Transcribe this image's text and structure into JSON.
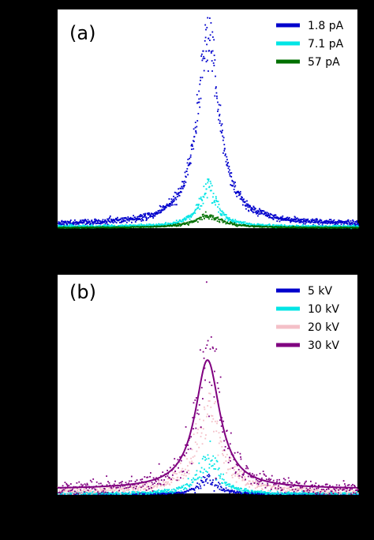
{
  "chart_data": [
    {
      "type": "scatter",
      "panel_label": "(a)",
      "xlabel": "",
      "ylabel": "",
      "title": "",
      "x_range": [
        -1,
        1
      ],
      "y_range": [
        0,
        1
      ],
      "grid": false,
      "legend_position": "top-right",
      "series": [
        {
          "name": "1.8 pA",
          "color": "#0000cc",
          "peak": 0.84,
          "width": 0.09,
          "baseline": 0.02,
          "noise": 0.05,
          "points": 900,
          "fit": false
        },
        {
          "name": "7.1 pA",
          "color": "#00e5e5",
          "peak": 0.18,
          "width": 0.07,
          "baseline": 0.01,
          "noise": 0.02,
          "points": 700,
          "fit": false
        },
        {
          "name": "57 pA",
          "color": "#007000",
          "peak": 0.05,
          "width": 0.12,
          "baseline": 0.005,
          "noise": 0.006,
          "points": 600,
          "fit": false
        }
      ]
    },
    {
      "type": "scatter",
      "panel_label": "(b)",
      "xlabel": "",
      "ylabel": "",
      "title": "",
      "x_range": [
        -1,
        1
      ],
      "y_range": [
        0,
        1
      ],
      "grid": false,
      "legend_position": "top-right",
      "series": [
        {
          "name": "5 kV",
          "color": "#0000cc",
          "peak": 0.07,
          "width": 0.07,
          "baseline": 0.0,
          "noise": 0.015,
          "points": 500,
          "fit": false
        },
        {
          "name": "10 kV",
          "color": "#00e5e5",
          "peak": 0.17,
          "width": 0.08,
          "baseline": 0.0,
          "noise": 0.03,
          "points": 500,
          "fit": false
        },
        {
          "name": "20 kV",
          "color": "#f4c0c8",
          "peak": 0.38,
          "width": 0.1,
          "baseline": 0.01,
          "noise": 0.06,
          "points": 500,
          "fit": false
        },
        {
          "name": "30 kV",
          "color": "#800080",
          "peak": 0.59,
          "width": 0.1,
          "baseline": 0.02,
          "noise": 0.12,
          "points": 450,
          "fit": true
        }
      ]
    }
  ]
}
